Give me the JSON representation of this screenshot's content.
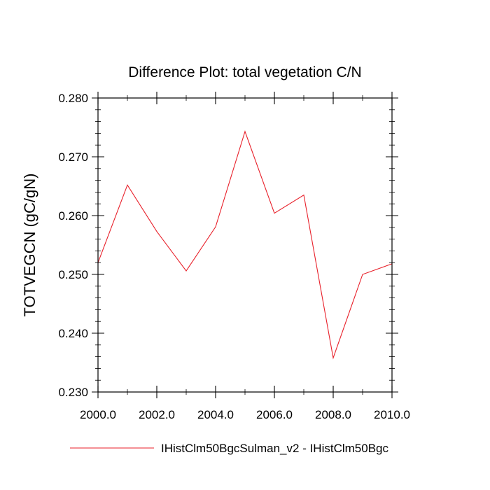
{
  "chart_data": {
    "type": "line",
    "title": "Difference Plot: total vegetation C/N",
    "xlabel": "",
    "ylabel": "TOTVEGCN  (gC/gN)",
    "xlim": [
      2000,
      2010
    ],
    "ylim": [
      0.23,
      0.28
    ],
    "x_ticks": [
      "2000.0",
      "2002.0",
      "2004.0",
      "2006.0",
      "2008.0",
      "2010.0"
    ],
    "y_ticks": [
      "0.230",
      "0.240",
      "0.250",
      "0.260",
      "0.270",
      "0.280"
    ],
    "grid": false,
    "legend_position": "bottom",
    "series": [
      {
        "name": "IHistClm50BgcSulman_v2 - IHistClm50Bgc",
        "color": "#e8202a",
        "x": [
          2000,
          2001,
          2002,
          2003,
          2004,
          2005,
          2006,
          2007,
          2008,
          2009,
          2010
        ],
        "y": [
          0.252,
          0.2652,
          0.2573,
          0.2506,
          0.2581,
          0.2743,
          0.2604,
          0.2635,
          0.2358,
          0.25,
          0.2518
        ]
      }
    ]
  }
}
